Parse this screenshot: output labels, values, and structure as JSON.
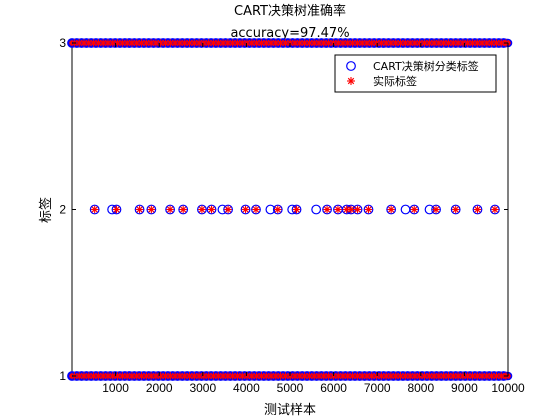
{
  "chart_data": {
    "type": "scatter",
    "title": "CART决策树准确率",
    "subtitle": "accuracy=97.47%",
    "xlabel": "测试样本",
    "ylabel": "标签",
    "xlim": [
      0,
      10000
    ],
    "ylim": [
      1,
      3
    ],
    "xticks": [
      1000,
      2000,
      3000,
      4000,
      5000,
      6000,
      7000,
      8000,
      9000,
      10000
    ],
    "yticks": [
      1,
      2,
      3
    ],
    "grid": false,
    "legend_position": "top-right",
    "series": [
      {
        "name": "CART决策树分类标签",
        "marker": "circle",
        "color": "#0000ff",
        "label2_x": [
          520,
          920,
          1020,
          1550,
          1820,
          2250,
          2550,
          2980,
          3200,
          3450,
          3580,
          3980,
          4220,
          4550,
          4720,
          5050,
          5150,
          5600,
          5850,
          6100,
          6300,
          6400,
          6550,
          6800,
          7320,
          7650,
          7850,
          8200,
          8350,
          8800,
          9300,
          9700
        ],
        "dense_label1_x": [
          0,
          10000
        ],
        "dense_label3_x": [
          0,
          10000
        ]
      },
      {
        "name": "实际标签",
        "marker": "asterisk",
        "color": "#ff0000",
        "label2_x": [
          520,
          1020,
          1550,
          1820,
          2250,
          2550,
          2980,
          3200,
          3580,
          3980,
          4220,
          4720,
          5150,
          5850,
          6100,
          6300,
          6400,
          6550,
          6800,
          7320,
          7850,
          8350,
          8800,
          9300,
          9700
        ],
        "dense_label1_x": [
          0,
          10000
        ],
        "dense_label3_x": [
          0,
          10000
        ]
      }
    ]
  }
}
